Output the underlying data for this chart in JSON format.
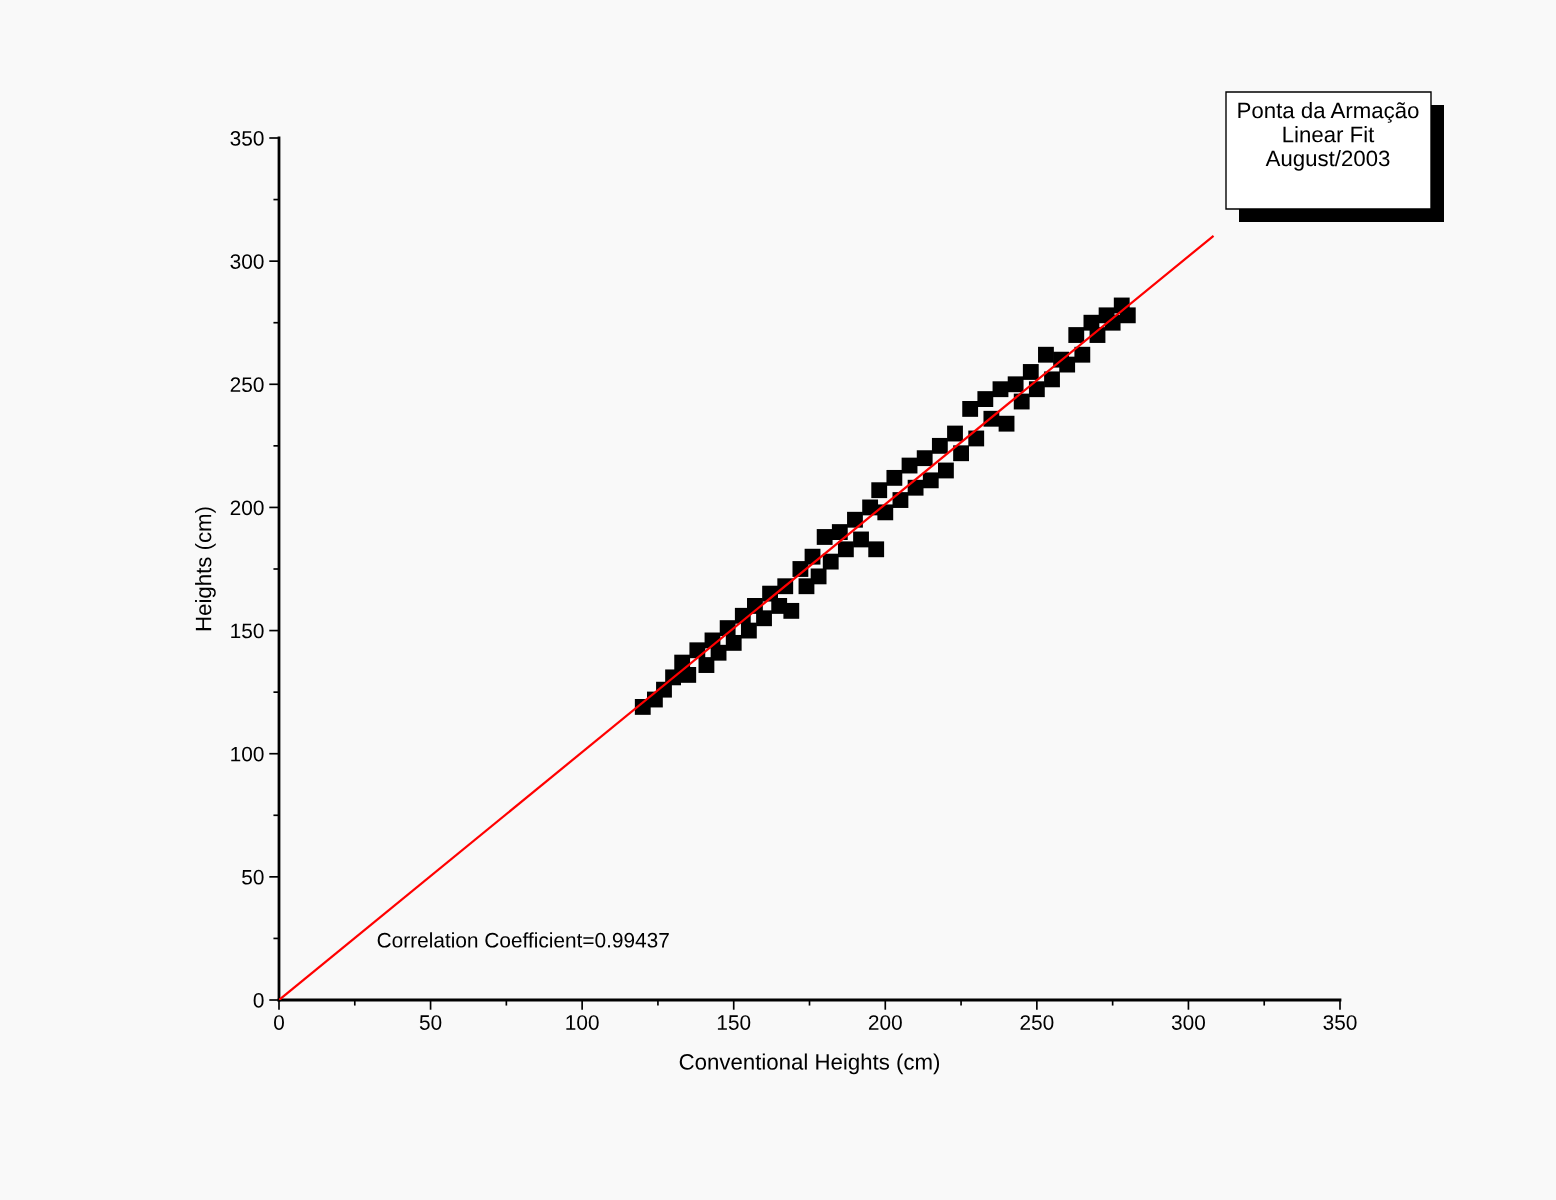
{
  "chart_data": {
    "type": "scatter",
    "xlabel": "Conventional Heights (cm)",
    "ylabel": "Heights (cm)",
    "xlim": [
      0,
      350
    ],
    "ylim": [
      0,
      350
    ],
    "xticks": [
      0,
      50,
      100,
      150,
      200,
      250,
      300,
      350
    ],
    "yticks": [
      0,
      50,
      100,
      150,
      200,
      250,
      300,
      350
    ],
    "grid": false,
    "marker": "square",
    "series": [
      {
        "color": "#000000",
        "x": [
          120,
          124,
          127,
          130,
          133,
          135,
          138,
          141,
          143,
          145,
          148,
          150,
          153,
          155,
          157,
          160,
          162,
          165,
          167,
          169,
          172,
          174,
          176,
          178,
          180,
          182,
          185,
          187,
          190,
          192,
          195,
          197,
          198,
          200,
          203,
          205,
          208,
          210,
          213,
          215,
          218,
          220,
          223,
          225,
          228,
          230,
          233,
          235,
          238,
          240,
          243,
          245,
          248,
          250,
          253,
          255,
          258,
          260,
          263,
          265,
          268,
          270,
          273,
          275,
          278,
          280
        ],
        "values": [
          119,
          122,
          126,
          131,
          137,
          132,
          142,
          136,
          146,
          141,
          151,
          145,
          156,
          150,
          160,
          155,
          165,
          160,
          168,
          158,
          175,
          168,
          180,
          172,
          188,
          178,
          190,
          183,
          195,
          187,
          200,
          183,
          207,
          198,
          212,
          203,
          217,
          208,
          220,
          211,
          225,
          215,
          230,
          222,
          240,
          228,
          244,
          236,
          248,
          234,
          250,
          243,
          255,
          248,
          262,
          252,
          260,
          258,
          270,
          262,
          275,
          270,
          278,
          275,
          282,
          278
        ]
      },
      {
        "type": "line",
        "color": "#ff0000",
        "marker": "none",
        "line_style": "solid",
        "x": [
          0,
          308
        ],
        "values": [
          0,
          310
        ]
      }
    ],
    "annotations": [
      "Correlation Coefficient=0.99437",
      "Ponta da Armação\nLinear Fit\nAugust/2003"
    ]
  }
}
